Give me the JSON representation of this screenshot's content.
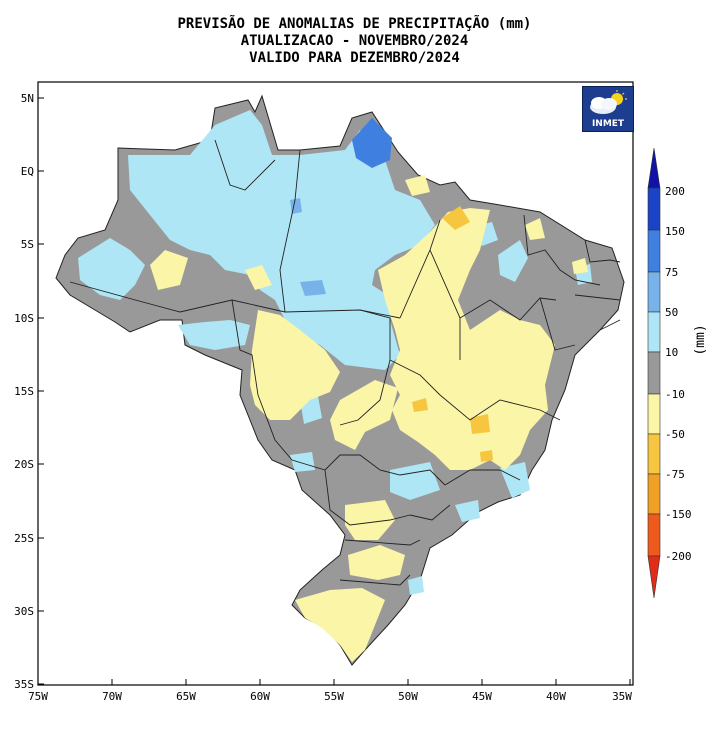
{
  "title": {
    "line1": "PREVISÃO DE ANOMALIAS DE PRECIPITAÇÃO (mm)",
    "line2": "ATUALIZACAO - NOVEMBRO/2024",
    "line3": "VALIDO PARA DEZEMBRO/2024"
  },
  "logo": {
    "text": "INMET",
    "icon": "cloud-sun-icon"
  },
  "axes": {
    "lat_labels": [
      "5N",
      "EQ",
      "5S",
      "10S",
      "15S",
      "20S",
      "25S",
      "30S",
      "35S"
    ],
    "lon_labels": [
      "75W",
      "70W",
      "65W",
      "60W",
      "55W",
      "50W",
      "45W",
      "40W",
      "35W"
    ]
  },
  "legend": {
    "unit": "(mm)",
    "labels": [
      "200",
      "150",
      "75",
      "50",
      "10",
      "-10",
      "-50",
      "-75",
      "-150",
      "-200"
    ],
    "colors": {
      "above_150": "#1b43c8",
      "75_150": "#3f7fe0",
      "50_75": "#78b2ea",
      "10_50": "#aee6f5",
      "neutral": "#999999",
      "minus10_minus50": "#fbf5a8",
      "minus50_minus75": "#f7c640",
      "minus75_minus150": "#f0a024",
      "minus150_minus200": "#ee5a1c",
      "below_minus200": "#e02c18"
    }
  }
}
